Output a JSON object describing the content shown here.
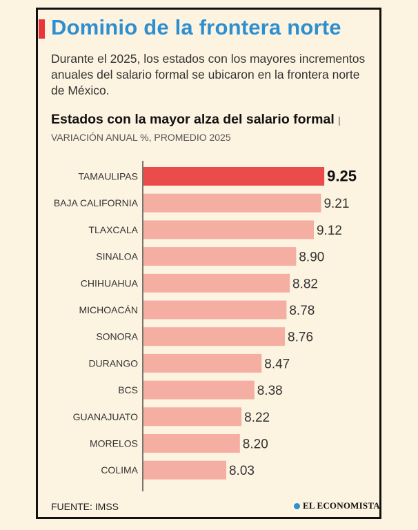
{
  "header": {
    "title": "Dominio de la frontera norte",
    "subtitle": "Durante el 2025, los estados con los mayores incrementos anuales del salario formal se ubicaron en la frontera norte de México."
  },
  "chart_heading": {
    "title": "Estados con la mayor alza del salario formal",
    "separator": "|",
    "unit": "VARIACIÓN ANUAL %, PROMEDIO 2025"
  },
  "chart_data": {
    "type": "bar",
    "orientation": "horizontal",
    "title": "Estados con la mayor alza del salario formal",
    "subtitle": "VARIACIÓN ANUAL %, PROMEDIO 2025",
    "categories": [
      "TAMAULIPAS",
      "BAJA CALIFORNIA",
      "TLAXCALA",
      "SINALOA",
      "CHIHUAHUA",
      "MICHOACÁN",
      "SONORA",
      "DURANGO",
      "BCS",
      "GUANAJUATO",
      "MORELOS",
      "COLIMA"
    ],
    "values": [
      9.25,
      9.21,
      9.12,
      8.9,
      8.82,
      8.78,
      8.76,
      8.47,
      8.38,
      8.22,
      8.2,
      8.03
    ],
    "value_labels": [
      "9.25",
      "9.21",
      "9.12",
      "8.90",
      "8.82",
      "8.78",
      "8.76",
      "8.47",
      "8.38",
      "8.22",
      "8.20",
      "8.03"
    ],
    "highlight_index": 0,
    "colors": {
      "highlight": "#ec4b4b",
      "bar": "#f4aea2",
      "axis": "#222222"
    },
    "grid": false
  },
  "footer": {
    "source": "FUENTE: IMSS",
    "logo_text": "EL ECONOMISTA"
  }
}
